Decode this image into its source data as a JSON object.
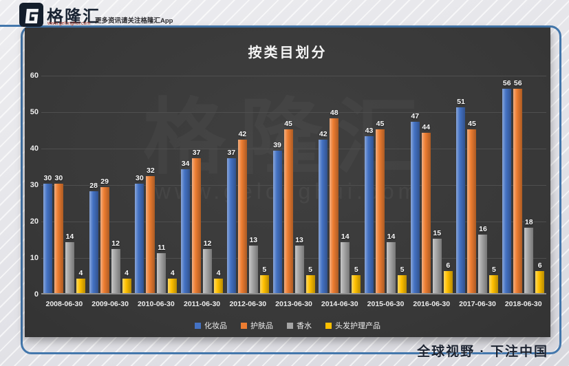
{
  "header": {
    "logo_text": "格隆汇",
    "logo_url": "www.gelonghui.com",
    "tagline": "更多资讯请关注格隆汇App"
  },
  "watermark": {
    "brand": "格隆汇",
    "url": "www.gelonghui.com"
  },
  "footer": {
    "slogan": "全球视野 · 下注中国"
  },
  "chart_data": {
    "type": "bar",
    "title": "按类目划分",
    "categories": [
      "2008-06-30",
      "2009-06-30",
      "2010-06-30",
      "2011-06-30",
      "2012-06-30",
      "2013-06-30",
      "2014-06-30",
      "2015-06-30",
      "2016-06-30",
      "2017-06-30",
      "2018-06-30"
    ],
    "series": [
      {
        "name": "化妆品",
        "color": "#4472c4",
        "values": [
          30,
          28,
          30,
          34,
          37,
          39,
          42,
          43,
          47,
          51,
          56
        ]
      },
      {
        "name": "护肤品",
        "color": "#ed7d31",
        "values": [
          30,
          29,
          32,
          37,
          42,
          45,
          48,
          45,
          44,
          45,
          56
        ]
      },
      {
        "name": "香水",
        "color": "#a5a5a5",
        "values": [
          14,
          12,
          11,
          12,
          13,
          13,
          14,
          14,
          15,
          16,
          18
        ]
      },
      {
        "name": "头发护理产品",
        "color": "#ffc000",
        "values": [
          4,
          4,
          4,
          4,
          5,
          5,
          5,
          5,
          6,
          5,
          6
        ]
      }
    ],
    "ylim": [
      0,
      60
    ],
    "ytick_step": 10,
    "grid": true,
    "legend_position": "bottom",
    "data_labels": true
  }
}
